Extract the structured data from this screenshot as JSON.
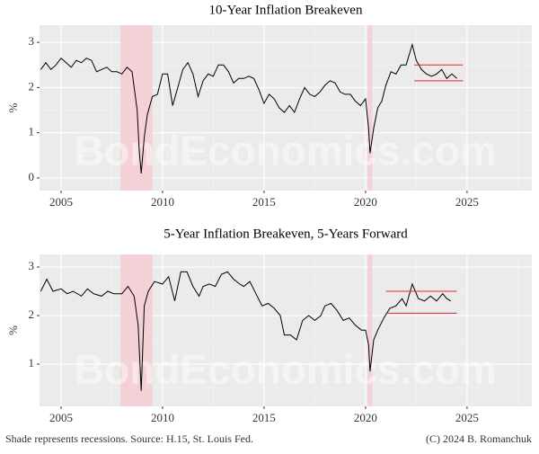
{
  "chart_data": [
    {
      "type": "line",
      "title": "10-Year Inflation Breakeven",
      "y_label": "%",
      "color": "#000000",
      "x": [
        2004.0,
        2004.25,
        2004.5,
        2004.75,
        2005.0,
        2005.25,
        2005.5,
        2005.75,
        2006.0,
        2006.25,
        2006.5,
        2006.75,
        2007.0,
        2007.25,
        2007.5,
        2007.75,
        2008.0,
        2008.25,
        2008.5,
        2008.75,
        2008.85,
        2008.95,
        2009.1,
        2009.25,
        2009.5,
        2009.75,
        2010.0,
        2010.25,
        2010.5,
        2010.75,
        2011.0,
        2011.25,
        2011.5,
        2011.75,
        2012.0,
        2012.25,
        2012.5,
        2012.75,
        2013.0,
        2013.25,
        2013.5,
        2013.75,
        2014.0,
        2014.25,
        2014.5,
        2014.75,
        2015.0,
        2015.25,
        2015.5,
        2015.75,
        2016.0,
        2016.25,
        2016.5,
        2016.75,
        2017.0,
        2017.25,
        2017.5,
        2017.75,
        2018.0,
        2018.25,
        2018.5,
        2018.75,
        2019.0,
        2019.25,
        2019.5,
        2019.75,
        2020.0,
        2020.15,
        2020.22,
        2020.4,
        2020.6,
        2020.8,
        2021.0,
        2021.25,
        2021.5,
        2021.75,
        2022.0,
        2022.3,
        2022.5,
        2022.75,
        2023.0,
        2023.25,
        2023.5,
        2023.75,
        2024.0,
        2024.25,
        2024.5
      ],
      "values": [
        2.4,
        2.55,
        2.4,
        2.5,
        2.65,
        2.55,
        2.45,
        2.6,
        2.55,
        2.65,
        2.6,
        2.35,
        2.4,
        2.45,
        2.35,
        2.35,
        2.3,
        2.45,
        2.35,
        1.5,
        0.6,
        0.1,
        0.9,
        1.4,
        1.8,
        1.85,
        2.3,
        2.3,
        1.6,
        2.0,
        2.4,
        2.55,
        2.3,
        1.8,
        2.15,
        2.3,
        2.25,
        2.5,
        2.5,
        2.35,
        2.1,
        2.2,
        2.2,
        2.25,
        2.2,
        1.95,
        1.65,
        1.85,
        1.75,
        1.55,
        1.45,
        1.6,
        1.45,
        1.75,
        2.0,
        1.85,
        1.8,
        1.9,
        2.05,
        2.15,
        2.1,
        1.9,
        1.85,
        1.85,
        1.7,
        1.6,
        1.75,
        1.1,
        0.55,
        1.1,
        1.55,
        1.7,
        2.05,
        2.35,
        2.3,
        2.5,
        2.5,
        2.95,
        2.6,
        2.4,
        2.3,
        2.25,
        2.3,
        2.4,
        2.2,
        2.3,
        2.2
      ],
      "xlim": [
        2003.94,
        2028.19
      ],
      "xticks": [
        2005,
        2010,
        2015,
        2020,
        2025
      ],
      "ylim": [
        -0.28,
        3.38
      ],
      "yticks": [
        0,
        1,
        2,
        3
      ],
      "grid": true,
      "recessions": [
        [
          2007.92,
          2009.5
        ],
        [
          2020.1,
          2020.33
        ]
      ],
      "recession_color": "#f4ccd4",
      "reference_lines": [
        {
          "y": 2.5,
          "x": [
            2022.4,
            2024.8
          ]
        },
        {
          "y": 2.15,
          "x": [
            2022.4,
            2024.8
          ]
        }
      ],
      "reference_color": "#e8243a"
    },
    {
      "type": "line",
      "title": "5-Year Inflation Breakeven, 5-Years Forward",
      "y_label": "%",
      "color": "#000000",
      "x": [
        2004.0,
        2004.3,
        2004.6,
        2005.0,
        2005.3,
        2005.6,
        2006.0,
        2006.3,
        2006.6,
        2007.0,
        2007.3,
        2007.6,
        2008.0,
        2008.3,
        2008.6,
        2008.8,
        2008.95,
        2009.1,
        2009.3,
        2009.6,
        2010.0,
        2010.3,
        2010.6,
        2010.9,
        2011.2,
        2011.5,
        2011.8,
        2012.0,
        2012.3,
        2012.6,
        2012.9,
        2013.2,
        2013.5,
        2013.8,
        2014.0,
        2014.3,
        2014.6,
        2014.9,
        2015.2,
        2015.5,
        2015.8,
        2016.0,
        2016.3,
        2016.6,
        2016.9,
        2017.2,
        2017.5,
        2017.8,
        2018.0,
        2018.3,
        2018.6,
        2018.9,
        2019.2,
        2019.5,
        2019.8,
        2020.0,
        2020.15,
        2020.22,
        2020.4,
        2020.6,
        2020.9,
        2021.2,
        2021.5,
        2021.8,
        2022.0,
        2022.3,
        2022.6,
        2022.9,
        2023.2,
        2023.5,
        2023.8,
        2024.0,
        2024.2
      ],
      "values": [
        2.5,
        2.75,
        2.5,
        2.55,
        2.45,
        2.5,
        2.4,
        2.55,
        2.45,
        2.4,
        2.5,
        2.45,
        2.45,
        2.6,
        2.4,
        1.8,
        0.45,
        2.2,
        2.5,
        2.7,
        2.65,
        2.8,
        2.3,
        2.9,
        2.9,
        2.6,
        2.4,
        2.6,
        2.65,
        2.6,
        2.85,
        2.9,
        2.75,
        2.65,
        2.6,
        2.7,
        2.45,
        2.2,
        2.25,
        2.15,
        2.0,
        1.6,
        1.6,
        1.5,
        1.9,
        2.0,
        1.9,
        2.0,
        2.2,
        2.25,
        2.1,
        1.9,
        1.95,
        1.8,
        1.7,
        1.7,
        1.4,
        0.85,
        1.5,
        1.7,
        1.95,
        2.15,
        2.2,
        2.35,
        2.2,
        2.65,
        2.35,
        2.3,
        2.4,
        2.3,
        2.45,
        2.35,
        2.3
      ],
      "xlim": [
        2003.94,
        2028.19
      ],
      "xticks": [
        2005,
        2010,
        2015,
        2020,
        2025
      ],
      "ylim": [
        0.13,
        3.26
      ],
      "yticks": [
        1,
        2,
        3
      ],
      "grid": true,
      "recessions": [
        [
          2007.92,
          2009.5
        ],
        [
          2020.1,
          2020.33
        ]
      ],
      "recession_color": "#f4ccd4",
      "reference_lines": [
        {
          "y": 2.5,
          "x": [
            2021.0,
            2024.5
          ]
        },
        {
          "y": 2.05,
          "x": [
            2021.0,
            2024.5
          ]
        }
      ],
      "reference_color": "#e8243a"
    }
  ],
  "watermark": "BondEconomics.com",
  "note": "Shade represents recessions. Source: H.15, St. Louis Fed.",
  "credit": "(C) 2024 B. Romanchuk"
}
